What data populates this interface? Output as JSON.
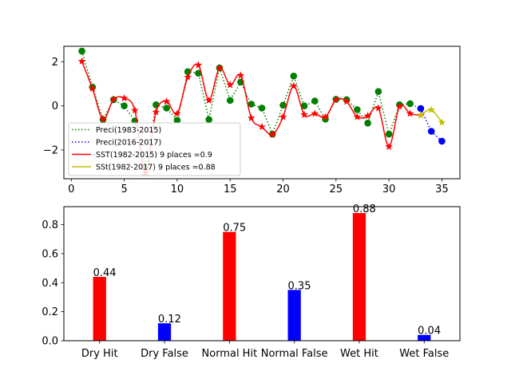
{
  "chart_data": [
    {
      "type": "line",
      "title": "",
      "xlabel": "",
      "ylabel": "",
      "xlim": [
        -0.7,
        36.7
      ],
      "ylim": [
        -3.3,
        2.7
      ],
      "xticks": [
        0,
        5,
        10,
        15,
        20,
        25,
        30,
        35
      ],
      "yticks": [
        -2,
        0,
        2
      ],
      "xtick_labels": [
        "0",
        "5",
        "10",
        "15",
        "20",
        "25",
        "30",
        "35"
      ],
      "ytick_labels": [
        "−2",
        "0",
        "2"
      ],
      "grid": false,
      "legend_position": "lower-left",
      "series": [
        {
          "name": " Preci(1983-2015)",
          "style": "dotted-with-circle-markers",
          "color": "#008000",
          "x": [
            1,
            2,
            3,
            4,
            5,
            6,
            7,
            8,
            9,
            10,
            11,
            12,
            13,
            14,
            15,
            16,
            17,
            18,
            19,
            20,
            21,
            22,
            23,
            24,
            25,
            26,
            27,
            28,
            29,
            30,
            31,
            32,
            33
          ],
          "y": [
            2.48,
            0.85,
            -0.62,
            0.28,
            0.0,
            -0.68,
            -2.8,
            0.05,
            -0.1,
            -0.65,
            1.55,
            1.48,
            -0.62,
            1.72,
            0.25,
            1.08,
            0.08,
            -0.1,
            -1.28,
            0.03,
            1.35,
            0.0,
            0.22,
            -0.6,
            0.3,
            0.28,
            -0.17,
            -0.78,
            0.65,
            -1.28,
            0.05,
            0.1,
            -0.12
          ]
        },
        {
          "name": "Preci(2016-2017)",
          "style": "dotted-with-circle-markers",
          "color": "#0000ff",
          "x": [
            33,
            34,
            35
          ],
          "y": [
            -0.12,
            -1.15,
            -1.6
          ]
        },
        {
          "name": "SST(1982-2015) 9 places =0.9",
          "style": "solid-with-star-markers",
          "color": "#ff0000",
          "x": [
            1,
            2,
            3,
            4,
            5,
            6,
            7,
            8,
            9,
            10,
            11,
            12,
            13,
            14,
            15,
            16,
            17,
            18,
            19,
            20,
            21,
            22,
            23,
            24,
            25,
            26,
            27,
            28,
            29,
            30,
            31,
            32,
            33
          ],
          "y": [
            2.02,
            0.78,
            -0.6,
            0.3,
            0.35,
            -0.2,
            -3.05,
            -0.28,
            0.2,
            -0.35,
            1.3,
            1.85,
            0.25,
            1.72,
            0.95,
            1.38,
            -0.55,
            -0.95,
            -1.3,
            -0.5,
            0.9,
            -0.4,
            -0.35,
            -0.5,
            0.28,
            0.2,
            -0.5,
            -0.45,
            -0.1,
            -1.85,
            -0.02,
            -0.35,
            -0.42
          ]
        },
        {
          "name": "SSt(1982-2017) 9 places =0.88",
          "style": "solid-with-star-markers",
          "color": "#bfbf00",
          "x": [
            33,
            34,
            35
          ],
          "y": [
            -0.42,
            -0.18,
            -0.75
          ]
        }
      ]
    },
    {
      "type": "bar",
      "title": "",
      "xlabel": "",
      "ylabel": "",
      "categories": [
        "Dry Hit",
        "Dry False",
        "Normal Hit",
        "Normal False",
        "Wet Hit",
        "Wet False"
      ],
      "values": [
        0.44,
        0.12,
        0.75,
        0.35,
        0.88,
        0.04
      ],
      "data_labels": [
        "0.44",
        "0.12",
        "0.75",
        "0.35",
        "0.88",
        "0.04"
      ],
      "colors": [
        "#ff0000",
        "#0000ff",
        "#ff0000",
        "#0000ff",
        "#ff0000",
        "#0000ff"
      ],
      "ylim": [
        0,
        0.924
      ],
      "yticks": [
        0.0,
        0.2,
        0.4,
        0.6,
        0.8
      ],
      "ytick_labels": [
        "0.0",
        "0.2",
        "0.4",
        "0.6",
        "0.8"
      ],
      "grid": false
    }
  ]
}
